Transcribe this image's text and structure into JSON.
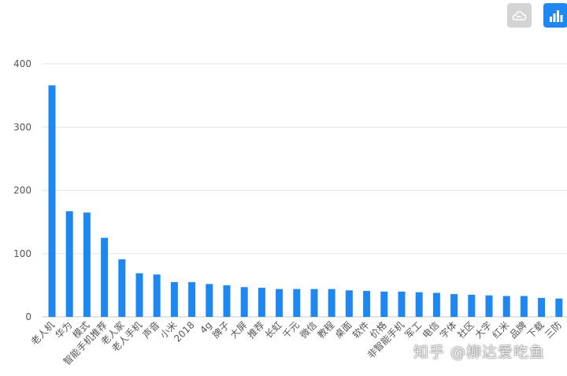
{
  "toolbar": {
    "word_cloud_icon": "cloud-icon",
    "bar_chart_icon": "bar-chart-icon",
    "active_color": "#1e88f0",
    "inactive_color": "#d4d4d4"
  },
  "chart_data": {
    "type": "bar",
    "categories": [
      "老人机",
      "华为",
      "模式",
      "智能手机推荐",
      "老人家",
      "老人手机",
      "声音",
      "小米",
      "2018",
      "4g",
      "牌子",
      "大屏",
      "推荐",
      "长虹",
      "千元",
      "微信",
      "教程",
      "桌面",
      "软件",
      "价格",
      "非智能手机",
      "军工",
      "电信",
      "字体",
      "社区",
      "大字",
      "红米",
      "品牌",
      "下载",
      "三防"
    ],
    "values": [
      366,
      167,
      165,
      125,
      91,
      69,
      67,
      55,
      55,
      52,
      50,
      47,
      46,
      44,
      44,
      44,
      44,
      42,
      41,
      40,
      40,
      39,
      38,
      36,
      35,
      34,
      33,
      33,
      30,
      29
    ],
    "yticks": [
      0,
      100,
      200,
      300,
      400
    ],
    "ylim": [
      0,
      400
    ],
    "bar_color": "#1e88f0",
    "grid": true
  },
  "watermark": {
    "text": "知乎 @柳达爱吃鱼"
  }
}
